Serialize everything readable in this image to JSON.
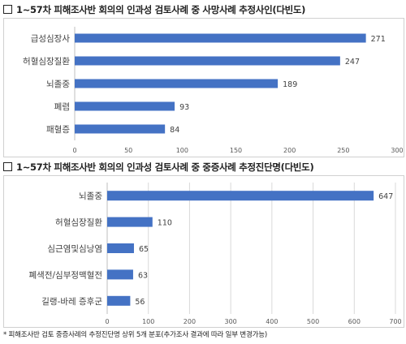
{
  "chart_data": [
    {
      "type": "bar",
      "orientation": "horizontal",
      "title": "1~57차 피해조사반 회의의 인과성 검토사례 중 사망사례 추정사인(다빈도)",
      "categories": [
        "급성심장사",
        "허혈심장질환",
        "뇌졸중",
        "폐렴",
        "패혈증"
      ],
      "values": [
        271,
        247,
        189,
        93,
        84
      ],
      "xlim": [
        0,
        300
      ],
      "xticks": [
        0,
        50,
        100,
        150,
        200,
        250,
        300
      ],
      "bar_color": "#4472c4",
      "grid": false
    },
    {
      "type": "bar",
      "orientation": "horizontal",
      "title": "1~57차 피해조사반 회의의 인과성 검토사례 중 중증사례 추정진단명(다빈도)",
      "categories": [
        "뇌졸중",
        "허혈심장질환",
        "심근염및심낭염",
        "폐색전/심부정맥혈전",
        "길랭-바레 증후군"
      ],
      "values": [
        647,
        110,
        65,
        63,
        56
      ],
      "xlim": [
        0,
        700
      ],
      "xticks": [
        0,
        100,
        200,
        300,
        400,
        500,
        600,
        700
      ],
      "bar_color": "#4472c4",
      "grid": true
    }
  ],
  "footnote": "* 피해조사반 검토 중증사례의 추정진단명 상위 5개 분포(추가조사 결과에 따라 일부 변경가능)"
}
